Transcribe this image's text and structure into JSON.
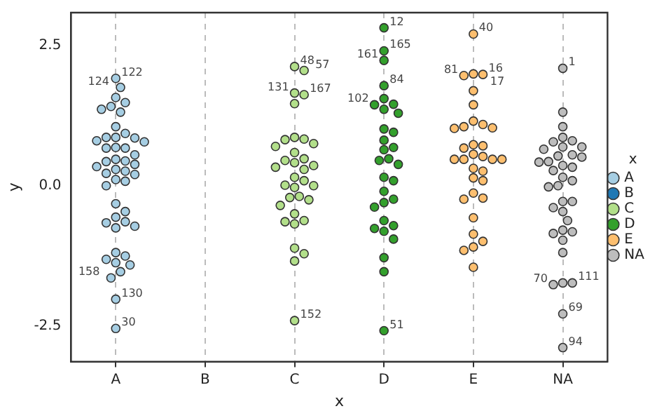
{
  "chart_data": {
    "type": "scatter",
    "xlabel": "x",
    "ylabel": "y",
    "legend_title": "x",
    "legend": "right",
    "grid": "x",
    "marker": "circle",
    "categories": [
      "A",
      "B",
      "C",
      "D",
      "E",
      "NA"
    ],
    "ylim": [
      -3.13,
      3.08
    ],
    "yticks": [
      -2.5,
      {
        "value": 0,
        "label": "0.0"
      },
      2.5
    ],
    "series": [
      {
        "name": "A",
        "color": "#a6cee3",
        "x": [
          "A",
          "A",
          "A",
          "A",
          "A",
          "A",
          "A",
          "A",
          "A",
          "A",
          "A",
          "A",
          "A",
          "A",
          "A",
          "A",
          "A",
          "A",
          "A",
          "A",
          "A",
          "A",
          "A",
          "A",
          "A",
          "A",
          "A",
          "A",
          "A",
          "A",
          "A",
          "A",
          "A",
          "A",
          "A",
          "A",
          "A",
          "A",
          "A",
          "A",
          "A",
          "A",
          "A",
          "A",
          "A",
          "A"
        ],
        "values": [
          1.91,
          1.75,
          1.41,
          1.48,
          1.57,
          1.31,
          1.36,
          1.05,
          0.93,
          0.85,
          0.78,
          0.8,
          0.86,
          0.86,
          0.67,
          0.67,
          0.68,
          0.55,
          0.44,
          0.47,
          0.43,
          0.38,
          0.34,
          0.29,
          0.26,
          0.22,
          0.2,
          0.11,
          0.08,
          0.0,
          -0.32,
          -0.46,
          -0.56,
          -0.64,
          -0.66,
          -0.72,
          -0.75,
          -1.19,
          -1.25,
          -1.31,
          -1.37,
          -1.41,
          -1.53,
          -1.64,
          -2.02,
          -2.54
        ]
      },
      {
        "name": "B",
        "color": "#1f78b4",
        "x": [
          "B"
        ],
        "values": [
          null
        ]
      },
      {
        "name": "C",
        "color": "#b2df8a",
        "x": [
          "C",
          "C",
          "C",
          "C",
          "C",
          "C",
          "C",
          "C",
          "C",
          "C",
          "C",
          "C",
          "C",
          "C",
          "C",
          "C",
          "C",
          "C",
          "C",
          "C",
          "C",
          "C",
          "C",
          "C",
          "C",
          "C",
          "C",
          "C",
          "C",
          "C",
          "C",
          "C",
          "C",
          "C"
        ],
        "values": [
          2.12,
          2.05,
          1.62,
          1.46,
          1.65,
          0.86,
          0.82,
          0.83,
          0.75,
          0.7,
          0.59,
          0.48,
          0.45,
          0.36,
          0.33,
          0.41,
          0.29,
          0.15,
          0.09,
          0.01,
          0.0,
          -0.03,
          -0.35,
          -0.19,
          -0.21,
          -0.25,
          -0.5,
          -0.64,
          -0.62,
          -0.68,
          -1.11,
          -1.21,
          -1.34,
          -2.4
        ]
      },
      {
        "name": "D",
        "color": "#33a02c",
        "x": [
          "D",
          "D",
          "D",
          "D",
          "D",
          "D",
          "D",
          "D",
          "D",
          "D",
          "D",
          "D",
          "D",
          "D",
          "D",
          "D",
          "D",
          "D",
          "D",
          "D",
          "D",
          "D",
          "D",
          "D",
          "D",
          "D",
          "D",
          "D",
          "D",
          "D",
          "D"
        ],
        "values": [
          2.4,
          2.23,
          2.81,
          1.78,
          1.55,
          1.36,
          1.45,
          1.44,
          1.29,
          0.95,
          1.01,
          0.81,
          0.64,
          0.68,
          0.48,
          0.45,
          0.38,
          0.15,
          0.09,
          -0.24,
          -0.1,
          -0.3,
          -0.38,
          -0.62,
          -0.81,
          -0.76,
          -0.95,
          -0.71,
          -1.28,
          -1.53,
          -2.58
        ]
      },
      {
        "name": "E",
        "color": "#fdbf6f",
        "x": [
          "E",
          "E",
          "E",
          "E",
          "E",
          "E",
          "E",
          "E",
          "E",
          "E",
          "E",
          "E",
          "E",
          "E",
          "E",
          "E",
          "E",
          "E",
          "E",
          "E",
          "E",
          "E",
          "E",
          "E",
          "E",
          "E",
          "E",
          "E",
          "E",
          "E",
          "E",
          "E",
          "E"
        ],
        "values": [
          2.7,
          1.98,
          1.96,
          1.99,
          1.69,
          1.44,
          1.15,
          1.09,
          1.03,
          1.02,
          1.05,
          0.73,
          0.71,
          0.67,
          0.47,
          0.47,
          0.56,
          0.52,
          0.47,
          0.47,
          0.26,
          0.31,
          0.14,
          0.09,
          -0.22,
          -0.13,
          -0.24,
          -0.57,
          -0.86,
          -0.99,
          -1.09,
          -1.15,
          -1.45
        ]
      },
      {
        "name": "NA",
        "color": "#bdbdbd",
        "x": [
          "NA",
          "NA",
          "NA",
          "NA",
          "NA",
          "NA",
          "NA",
          "NA",
          "NA",
          "NA",
          "NA",
          "NA",
          "NA",
          "NA",
          "NA",
          "NA",
          "NA",
          "NA",
          "NA",
          "NA",
          "NA",
          "NA",
          "NA",
          "NA",
          "NA",
          "NA",
          "NA",
          "NA",
          "NA",
          "NA",
          "NA",
          "NA",
          "NA",
          "NA",
          "NA",
          "NA"
        ],
        "values": [
          2.09,
          1.31,
          1.05,
          0.86,
          0.78,
          0.8,
          0.69,
          0.69,
          0.65,
          0.55,
          0.51,
          0.53,
          0.43,
          0.42,
          0.36,
          0.33,
          0.27,
          0.15,
          0.09,
          -0.02,
          0.0,
          -0.28,
          -0.28,
          -0.39,
          -0.46,
          -0.62,
          -0.79,
          -0.82,
          -0.85,
          -0.97,
          -1.19,
          -1.73,
          -1.73,
          -1.76,
          -2.28,
          -2.88
        ]
      }
    ],
    "annotations": [
      {
        "text": "122",
        "x": "A",
        "y": 1.91
      },
      {
        "text": "124",
        "x": "A",
        "y": 1.75
      },
      {
        "text": "158",
        "x": "A",
        "y": -1.64
      },
      {
        "text": "130",
        "x": "A",
        "y": -2.02
      },
      {
        "text": "30",
        "x": "A",
        "y": -2.54
      },
      {
        "text": "48",
        "x": "C",
        "y": 2.12
      },
      {
        "text": "57",
        "x": "C",
        "y": 2.05
      },
      {
        "text": "167",
        "x": "C",
        "y": 1.62
      },
      {
        "text": "131",
        "x": "C",
        "y": 1.65
      },
      {
        "text": "152",
        "x": "C",
        "y": -2.4
      },
      {
        "text": "165",
        "x": "D",
        "y": 2.4
      },
      {
        "text": "161",
        "x": "D",
        "y": 2.23
      },
      {
        "text": "12",
        "x": "D",
        "y": 2.81
      },
      {
        "text": "84",
        "x": "D",
        "y": 1.78
      },
      {
        "text": "102",
        "x": "D",
        "y": 1.44
      },
      {
        "text": "51",
        "x": "D",
        "y": -2.58
      },
      {
        "text": "40",
        "x": "E",
        "y": 2.7
      },
      {
        "text": "16",
        "x": "E",
        "y": 1.98
      },
      {
        "text": "81",
        "x": "E",
        "y": 1.96
      },
      {
        "text": "17",
        "x": "E",
        "y": 1.99
      },
      {
        "text": "1",
        "x": "NA",
        "y": 2.09
      },
      {
        "text": "111",
        "x": "NA",
        "y": -1.73
      },
      {
        "text": "70",
        "x": "NA",
        "y": -1.76
      },
      {
        "text": "69",
        "x": "NA",
        "y": -2.28
      },
      {
        "text": "94",
        "x": "NA",
        "y": -2.88
      }
    ]
  }
}
